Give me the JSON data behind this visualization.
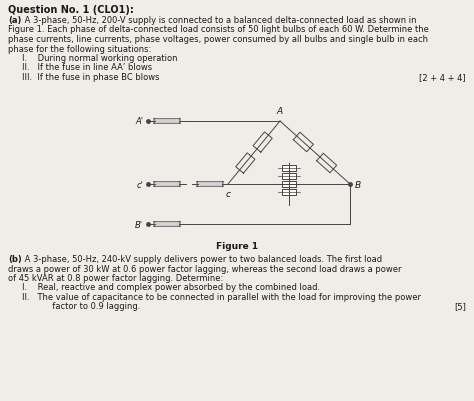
{
  "background_color": "#f0ede8",
  "title": "Question No. 1 (CLO1):",
  "para_a_bold": "(a)",
  "para_a_rest": " A 3-phase, 50-Hz, 200-V supply is connected to a balanced delta-connected load as shown in\nFigure 1. Each phase of delta-connected load consists of 50 light bulbs of each 60 W. Determine the\nphase currents, line currents, phase voltages, power consumed by all bulbs and single bulb in each\nphase for the following situations:",
  "items_a": [
    "I.    During normal working operation",
    "II.   If the fuse in line AA’ blows",
    "III.  If the fuse in phase BC blows"
  ],
  "marks_a": "[2 + 4 + 4]",
  "figure_label": "Figure 1",
  "para_b_bold": "(b)",
  "para_b_rest": " A 3-phase, 50-Hz, 240-kV supply delivers power to two balanced loads. The first load\ndraws a power of 30 kW at 0.6 power factor lagging, whereas the second load draws a power\nof 45 kVAR at 0.8 power factor lagging. Determine:",
  "items_b": [
    "I.    Real, reactive and complex power absorbed by the combined load.",
    "II.   The value of capacitance to be connected in parallel with the load for improving the power\n       factor to 0.9 lagging."
  ],
  "marks_b": "[5]",
  "text_color": "#1a1a1a",
  "line_color": "#444444"
}
